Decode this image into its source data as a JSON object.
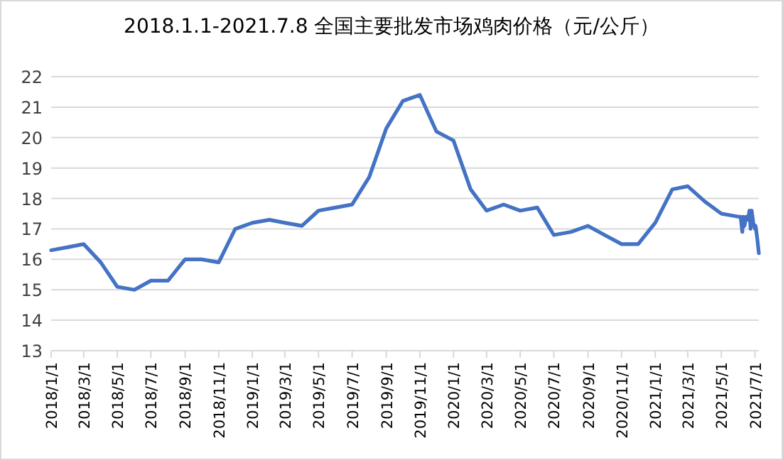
{
  "chart_data": {
    "type": "line",
    "title": "2018.1.1-2021.7.8 全国主要批发市场鸡肉价格（元/公斤）",
    "x": [
      "2018-01-01",
      "2018-02-01",
      "2018-03-01",
      "2018-04-01",
      "2018-05-01",
      "2018-06-01",
      "2018-07-01",
      "2018-08-01",
      "2018-09-01",
      "2018-10-01",
      "2018-11-01",
      "2018-12-01",
      "2019-01-01",
      "2019-02-01",
      "2019-03-01",
      "2019-04-01",
      "2019-05-01",
      "2019-06-01",
      "2019-07-01",
      "2019-08-01",
      "2019-09-01",
      "2019-10-01",
      "2019-11-01",
      "2019-12-01",
      "2020-01-01",
      "2020-02-01",
      "2020-03-01",
      "2020-04-01",
      "2020-05-01",
      "2020-06-01",
      "2020-07-01",
      "2020-08-01",
      "2020-09-01",
      "2020-10-01",
      "2020-11-01",
      "2020-12-01",
      "2021-01-01",
      "2021-02-01",
      "2021-03-01",
      "2021-04-01",
      "2021-05-01",
      "2021-06-01",
      "2021-06-05",
      "2021-06-08",
      "2021-06-10",
      "2021-06-12",
      "2021-06-15",
      "2021-06-18",
      "2021-06-21",
      "2021-06-23",
      "2021-06-25",
      "2021-06-28",
      "2021-07-01",
      "2021-07-02",
      "2021-07-05",
      "2021-07-08"
    ],
    "values": [
      16.3,
      16.4,
      16.5,
      15.9,
      15.1,
      15.0,
      15.3,
      15.3,
      16.0,
      16.0,
      15.9,
      17.0,
      17.2,
      17.3,
      17.2,
      17.1,
      17.6,
      17.7,
      17.8,
      18.7,
      20.3,
      21.2,
      21.4,
      20.2,
      19.9,
      18.3,
      17.6,
      17.8,
      17.6,
      17.7,
      16.8,
      16.9,
      17.1,
      16.8,
      16.5,
      16.5,
      17.2,
      18.3,
      18.4,
      17.9,
      17.5,
      17.4,
      17.4,
      16.9,
      17.4,
      17.1,
      17.4,
      17.3,
      17.6,
      17.0,
      17.6,
      17.2,
      17.0,
      17.1,
      16.7,
      16.2
    ],
    "color": "#4472c4",
    "xlim": [
      "2018-01-01",
      "2021-07-08"
    ],
    "xticks": [
      {
        "value": "2018-01-01",
        "label": "2018/1/1"
      },
      {
        "value": "2018-03-01",
        "label": "2018/3/1"
      },
      {
        "value": "2018-05-01",
        "label": "2018/5/1"
      },
      {
        "value": "2018-07-01",
        "label": "2018/7/1"
      },
      {
        "value": "2018-09-01",
        "label": "2018/9/1"
      },
      {
        "value": "2018-11-01",
        "label": "2018/11/1"
      },
      {
        "value": "2019-01-01",
        "label": "2019/1/1"
      },
      {
        "value": "2019-03-01",
        "label": "2019/3/1"
      },
      {
        "value": "2019-05-01",
        "label": "2019/5/1"
      },
      {
        "value": "2019-07-01",
        "label": "2019/7/1"
      },
      {
        "value": "2019-09-01",
        "label": "2019/9/1"
      },
      {
        "value": "2019-11-01",
        "label": "2019/11/1"
      },
      {
        "value": "2020-01-01",
        "label": "2020/1/1"
      },
      {
        "value": "2020-03-01",
        "label": "2020/3/1"
      },
      {
        "value": "2020-05-01",
        "label": "2020/5/1"
      },
      {
        "value": "2020-07-01",
        "label": "2020/7/1"
      },
      {
        "value": "2020-09-01",
        "label": "2020/9/1"
      },
      {
        "value": "2020-11-01",
        "label": "2020/11/1"
      },
      {
        "value": "2021-01-01",
        "label": "2021/1/1"
      },
      {
        "value": "2021-03-01",
        "label": "2021/3/1"
      },
      {
        "value": "2021-05-01",
        "label": "2021/5/1"
      },
      {
        "value": "2021-07-01",
        "label": "2021/7/1"
      }
    ],
    "ylim": [
      13,
      22
    ],
    "yticks": [
      13,
      14,
      15,
      16,
      17,
      18,
      19,
      20,
      21,
      22
    ],
    "grid": "y",
    "marker": "none",
    "line_style": "solid"
  }
}
